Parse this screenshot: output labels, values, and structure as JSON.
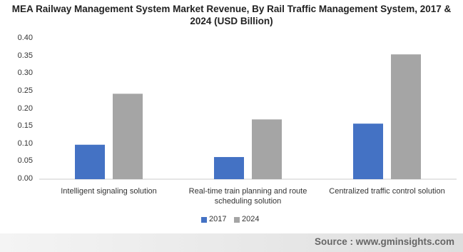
{
  "chart_data": {
    "type": "bar",
    "title": "MEA Railway Management System Market Revenue, By Rail Traffic Management System, 2017 & 2024 (USD Billion)",
    "categories": [
      "Intelligent signaling solution",
      "Real-time train planning and route scheduling solution",
      "Centralized traffic control solution"
    ],
    "series": [
      {
        "name": "2017",
        "color": "#4472c4",
        "values": [
          0.098,
          0.063,
          0.158
        ]
      },
      {
        "name": "2024",
        "color": "#a5a5a5",
        "values": [
          0.243,
          0.17,
          0.355
        ]
      }
    ],
    "ylim": [
      0,
      0.4
    ],
    "yticks": [
      {
        "value": 0,
        "label": "0.00"
      },
      {
        "value": 0.05,
        "label": "0.05"
      },
      {
        "value": 0.1,
        "label": "0.10"
      },
      {
        "value": 0.15,
        "label": "0.15"
      },
      {
        "value": 0.2,
        "label": "0.20"
      },
      {
        "value": 0.25,
        "label": "0.25"
      },
      {
        "value": 0.3,
        "label": "0.30"
      },
      {
        "value": 0.35,
        "label": "0.35"
      },
      {
        "value": 0.4,
        "label": "0.40"
      }
    ],
    "grid": false,
    "legend": "bottom",
    "source": "Source : www.gminsights.com"
  }
}
